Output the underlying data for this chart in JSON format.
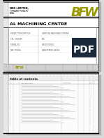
{
  "bg_color": "#d8d8d8",
  "company_name": "NER LIMITED,",
  "company_addr1": "TIRWANTHPURA PO",
  "company_addr2": "NOIA",
  "bfw_color_dark": "#7a7a00",
  "bfw_color": "#9a9a00",
  "title_text": "AL MACHINING CENTRE",
  "project_label": "PROJECT DESCRIPTION",
  "project_value": "VERTICAL MACHINING CENTRE",
  "ctrl_label": "CRL  SYSTEM",
  "ctrl_value": "P85",
  "serial_label": "SERIAL NO.",
  "serial_value": "456323/00252",
  "pac_label": "PAC  MODEL",
  "pac_value": "BMV/XTRON/ DX303",
  "toc_title": "Table of contents",
  "pdf_text": "PDF",
  "pdf_bg": "#1a2a3a"
}
